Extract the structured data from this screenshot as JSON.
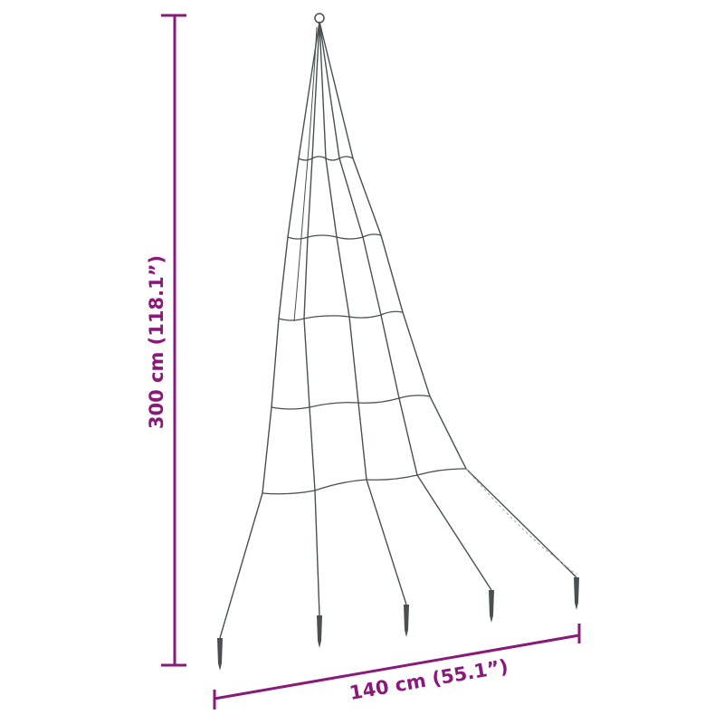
{
  "dimensions": {
    "height_label": "300 cm (118.1”)",
    "width_label": "140 cm (55.1”)"
  },
  "colors": {
    "dimension": "#8a1a7a",
    "wire": "#4a4f4f",
    "background": "#ffffff"
  },
  "product": {
    "strand_count": 5,
    "ring_count": 5
  }
}
